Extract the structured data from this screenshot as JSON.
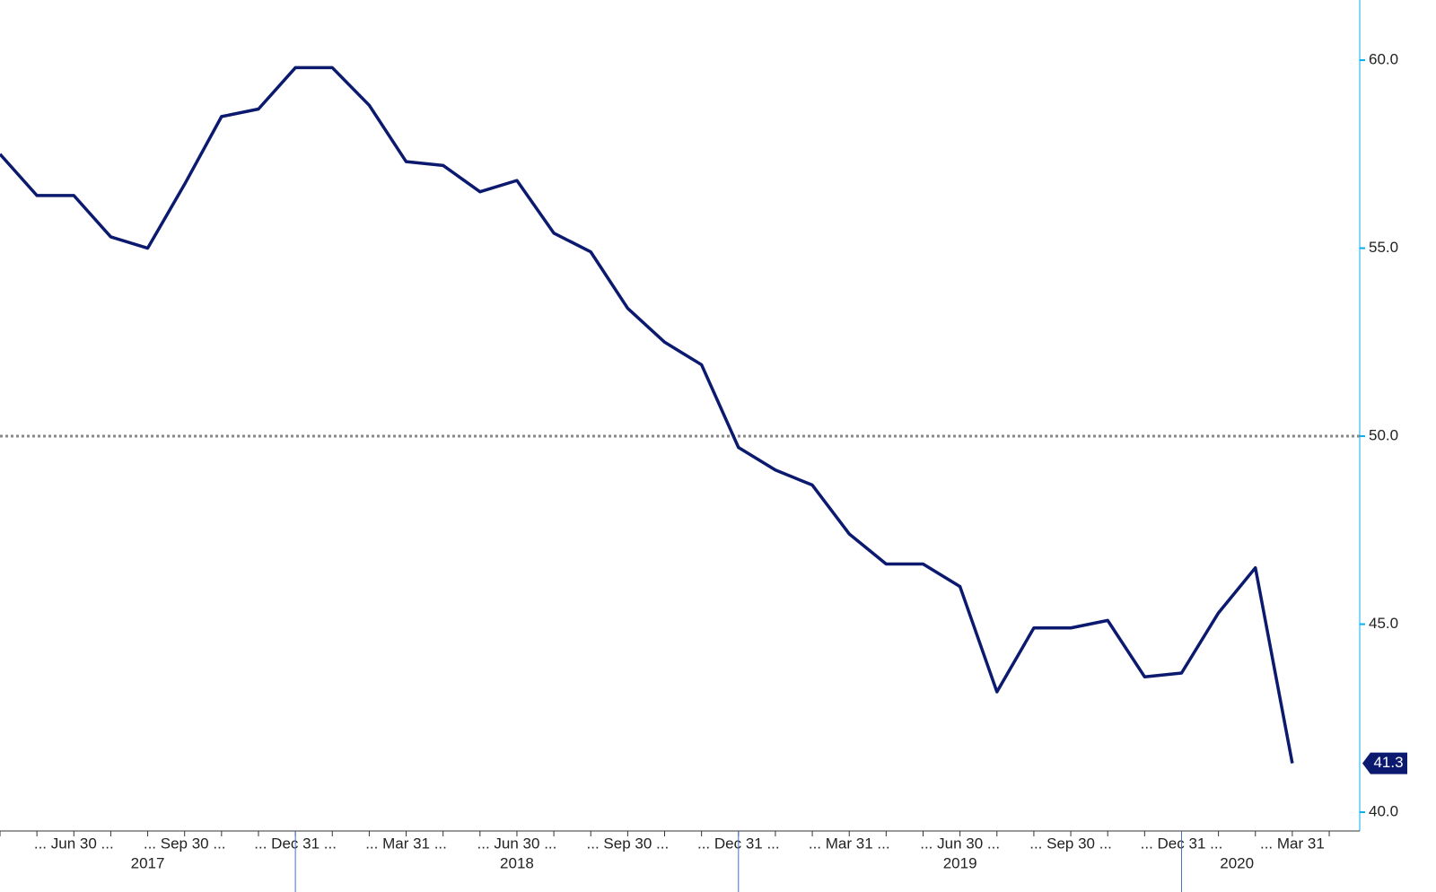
{
  "chart_data": {
    "type": "line",
    "categories": [
      null,
      null,
      "... Jun 30 ...",
      null,
      null,
      "... Sep 30 ...",
      null,
      null,
      "... Dec 31 ...",
      null,
      null,
      "... Mar 31 ...",
      null,
      null,
      "... Jun 30 ...",
      null,
      null,
      "... Sep 30 ...",
      null,
      null,
      "... Dec 31 ...",
      null,
      null,
      "... Mar 31 ...",
      null,
      null,
      "... Jun 30 ...",
      null,
      null,
      "... Sep 30 ...",
      null,
      null,
      "... Dec 31 ...",
      null,
      null,
      "... Mar 31"
    ],
    "years": [
      "2017",
      "2018",
      "2019",
      "2020"
    ],
    "series": [
      {
        "color": "#0b1a6e",
        "values": [
          57.5,
          56.4,
          56.4,
          55.3,
          55.0,
          56.7,
          58.5,
          58.7,
          59.8,
          59.8,
          58.8,
          57.3,
          57.2,
          56.5,
          56.8,
          55.4,
          54.9,
          53.4,
          52.5,
          51.9,
          49.7,
          49.1,
          48.7,
          47.4,
          46.6,
          46.6,
          46.0,
          43.2,
          44.9,
          44.9,
          45.1,
          43.6,
          43.7,
          45.3,
          46.5,
          41.3
        ]
      }
    ],
    "ylim": [
      39.5,
      61.6
    ],
    "yticks": [
      {
        "value": 40,
        "label": "40.0"
      },
      {
        "value": 45,
        "label": "45.0"
      },
      {
        "value": 50,
        "label": "50.0"
      },
      {
        "value": 55,
        "label": "55.0"
      },
      {
        "value": 60,
        "label": "60.0"
      }
    ],
    "reference_line": 50
  }
}
